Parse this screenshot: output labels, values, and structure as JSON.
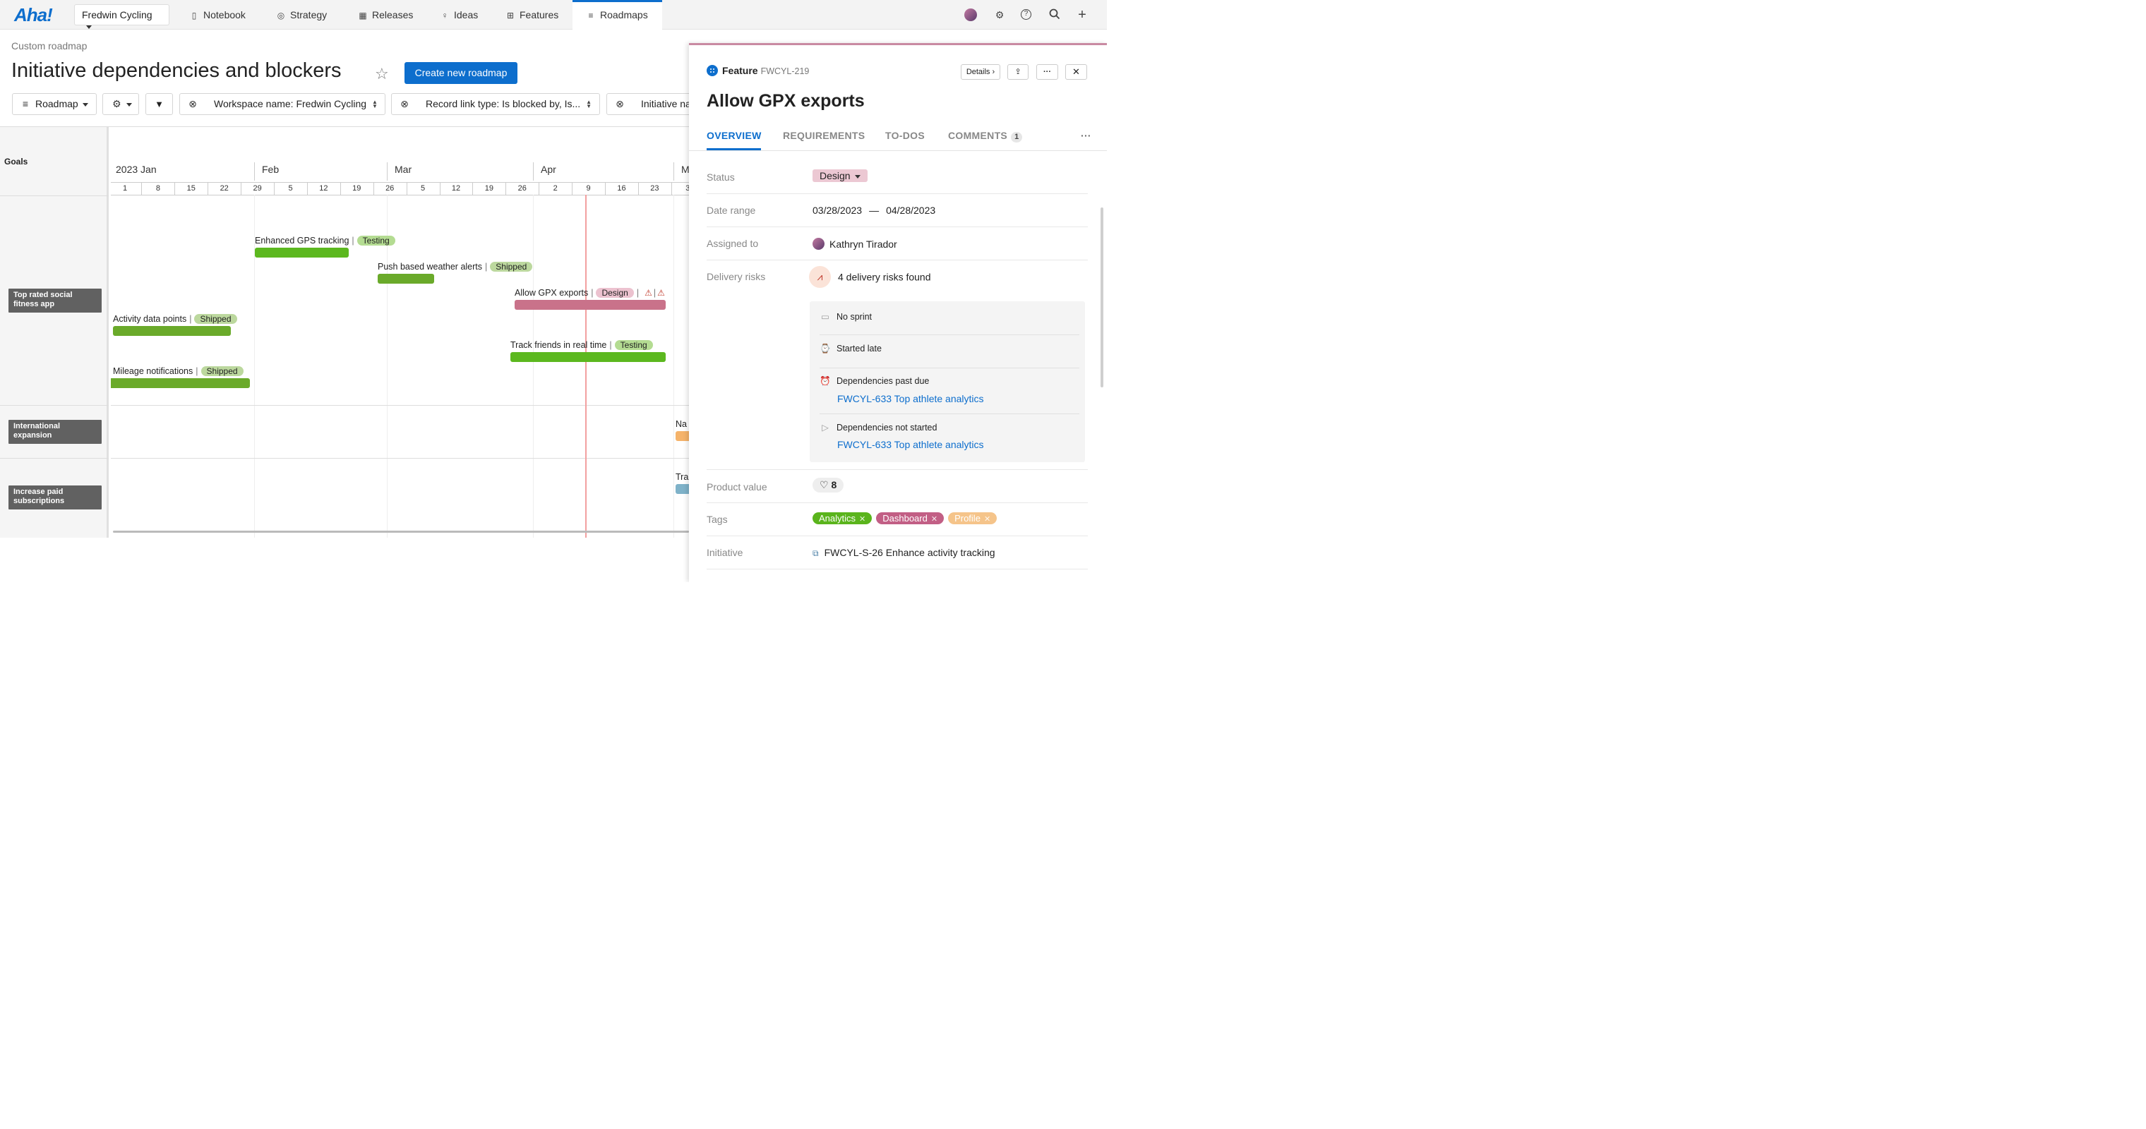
{
  "nav": {
    "logo": "Aha!",
    "workspace": "Fredwin Cycling",
    "items": [
      {
        "label": "Notebook",
        "icon": "notebook-icon"
      },
      {
        "label": "Strategy",
        "icon": "target-icon"
      },
      {
        "label": "Releases",
        "icon": "calendar-icon"
      },
      {
        "label": "Ideas",
        "icon": "lightbulb-icon"
      },
      {
        "label": "Features",
        "icon": "grid-icon"
      },
      {
        "label": "Roadmaps",
        "icon": "roadmap-icon"
      }
    ],
    "active": "Roadmaps"
  },
  "header": {
    "breadcrumb": "Custom roadmap",
    "title": "Initiative dependencies and blockers",
    "create_button": "Create new roadmap"
  },
  "toolbar": {
    "roadmap_menu": "Roadmap",
    "filters": [
      "Workspace name: Fredwin Cycling",
      "Record link type: Is blocked by, Is...",
      "Initiative na"
    ]
  },
  "roadmap": {
    "goals_header": "Goals",
    "goals": [
      "Top rated social fitness app",
      "International expansion",
      "Increase paid subscriptions"
    ],
    "months": [
      "2023 Jan",
      "Feb",
      "Mar",
      "Apr",
      "M"
    ],
    "weeks": [
      "1",
      "8",
      "15",
      "22",
      "29",
      "5",
      "12",
      "19",
      "26",
      "5",
      "12",
      "19",
      "26",
      "2",
      "9",
      "16",
      "23",
      "3"
    ],
    "features": [
      {
        "name": "Enhanced GPS tracking",
        "status": "Testing"
      },
      {
        "name": "Push based weather alerts",
        "status": "Shipped"
      },
      {
        "name": "Allow GPX exports",
        "status": "Design"
      },
      {
        "name": "Activity data points",
        "status": "Shipped"
      },
      {
        "name": "Track friends in real time",
        "status": "Testing"
      },
      {
        "name": "Mileage notifications",
        "status": "Shipped"
      },
      {
        "name": "Na"
      },
      {
        "name": "Tra"
      }
    ]
  },
  "panel": {
    "type": "Feature",
    "id": "FWCYL-219",
    "details_button": "Details",
    "title": "Allow GPX exports",
    "tabs": [
      "OVERVIEW",
      "REQUIREMENTS",
      "TO-DOS",
      "COMMENTS"
    ],
    "comments_count": "1",
    "fields": {
      "status_label": "Status",
      "status": "Design",
      "date_label": "Date range",
      "date_start": "03/28/2023",
      "date_sep": "—",
      "date_end": "04/28/2023",
      "assigned_label": "Assigned to",
      "assigned": "Kathryn Tirador",
      "risks_label": "Delivery risks",
      "risks_summary": "4 delivery risks found",
      "risks": [
        {
          "label": "No sprint"
        },
        {
          "label": "Started late"
        },
        {
          "label": "Dependencies past due",
          "link": "FWCYL-633 Top athlete analytics"
        },
        {
          "label": "Dependencies not started",
          "link": "FWCYL-633 Top athlete analytics"
        }
      ],
      "value_label": "Product value",
      "value": "8",
      "tags_label": "Tags",
      "tags": [
        "Analytics",
        "Dashboard",
        "Profile"
      ],
      "initiative_label": "Initiative",
      "initiative": "FWCYL-S-26 Enhance activity tracking"
    }
  },
  "colors": {
    "accent": "#0d6ecd",
    "shipped": "#6aaa2a",
    "testing": "#5cb81f",
    "design": "#c9728a",
    "goal_chip": "#616161",
    "tag_analytics": "#5ab41c",
    "tag_dashboard": "#c25f85",
    "tag_profile": "#f5c48a"
  }
}
